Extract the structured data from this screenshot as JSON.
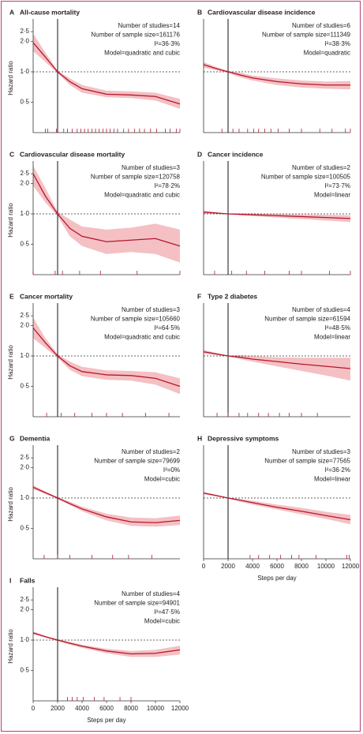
{
  "chart_data": [
    {
      "type": "line",
      "label": "A",
      "title": "All-cause mortality",
      "annotations": [
        "Number of studies=14",
        "Number of sample size=161176",
        "I²=36·3%",
        "Model=quadratic and cubic"
      ],
      "ylabel": "Hazard ratio",
      "log_y": true,
      "xlim": [
        0,
        12000
      ],
      "ylim": [
        0.25,
        3
      ],
      "yticks": [
        {
          "value": 0.5,
          "label": "0·5"
        },
        {
          "value": 1,
          "label": "1·0"
        },
        {
          "value": 2,
          "label": "2·0"
        },
        {
          "value": 2.5,
          "label": "2·5"
        }
      ],
      "reference_x": 2000,
      "reference_y": 1,
      "color": "#b5172e",
      "band_color": "#f4c0c3",
      "x": [
        0,
        1000,
        2000,
        3000,
        4000,
        6000,
        8000,
        10000,
        12000
      ],
      "values": [
        1.95,
        1.4,
        1.0,
        0.8,
        0.68,
        0.6,
        0.59,
        0.57,
        0.48
      ],
      "lower": [
        1.6,
        1.25,
        0.97,
        0.74,
        0.62,
        0.56,
        0.55,
        0.52,
        0.43
      ],
      "upper": [
        2.4,
        1.55,
        1.03,
        0.86,
        0.74,
        0.65,
        0.64,
        0.62,
        0.54
      ],
      "rug": [
        1000,
        1200,
        1900,
        2500,
        2800,
        3200,
        3600,
        3900,
        4200,
        4500,
        4800,
        5100,
        5400,
        5700,
        6000,
        6300,
        6600,
        6900,
        7400,
        7800,
        8300,
        8700,
        9100,
        9600,
        10100,
        10800,
        11200,
        11700,
        12000
      ]
    },
    {
      "type": "line",
      "label": "B",
      "title": "Cardiovascular disease incidence",
      "annotations": [
        "Number of studies=6",
        "Number of sample size=111349",
        "I²=38·3%",
        "Model=quadratic"
      ],
      "log_y": true,
      "xlim": [
        0,
        12000
      ],
      "ylim": [
        0.25,
        3
      ],
      "reference_x": 2000,
      "reference_y": 1,
      "color": "#b5172e",
      "band_color": "#f4c0c3",
      "x": [
        0,
        1000,
        2000,
        3000,
        4000,
        6000,
        8000,
        10000,
        12000
      ],
      "values": [
        1.18,
        1.08,
        1.0,
        0.93,
        0.87,
        0.8,
        0.76,
        0.74,
        0.74
      ],
      "lower": [
        1.1,
        1.04,
        0.98,
        0.88,
        0.82,
        0.74,
        0.7,
        0.68,
        0.67
      ],
      "upper": [
        1.25,
        1.12,
        1.02,
        0.98,
        0.92,
        0.86,
        0.82,
        0.8,
        0.81
      ],
      "rug": [
        1500,
        2400,
        2900,
        3600,
        4100,
        4500,
        5000,
        5500,
        6100,
        7000,
        8000,
        9500,
        10500,
        11600,
        12000
      ]
    },
    {
      "type": "line",
      "label": "C",
      "title": "Cardiovascular disease mortality",
      "annotations": [
        "Number of studies=3",
        "Number of sample size=120758",
        "I²=78·2%",
        "Model=quadratic and cubic"
      ],
      "ylabel": "Hazard ratio",
      "log_y": true,
      "xlim": [
        0,
        12000
      ],
      "ylim": [
        0.25,
        3
      ],
      "yticks": [
        {
          "value": 0.5,
          "label": "0·5"
        },
        {
          "value": 1,
          "label": "1·0"
        },
        {
          "value": 2,
          "label": "2·0"
        },
        {
          "value": 2.5,
          "label": "2·5"
        }
      ],
      "reference_x": 2000,
      "reference_y": 1,
      "color": "#b5172e",
      "band_color": "#f4c0c3",
      "x": [
        0,
        1000,
        2000,
        3000,
        4000,
        6000,
        8000,
        10000,
        12000
      ],
      "values": [
        2.5,
        1.5,
        1.0,
        0.72,
        0.6,
        0.53,
        0.55,
        0.57,
        0.48
      ],
      "lower": [
        1.9,
        1.3,
        0.95,
        0.6,
        0.48,
        0.4,
        0.42,
        0.4,
        0.33
      ],
      "upper": [
        3,
        1.8,
        1.05,
        0.88,
        0.75,
        0.7,
        0.73,
        0.8,
        0.7
      ],
      "rug": [
        0,
        1800,
        2400,
        3800,
        5500,
        8500,
        12000
      ]
    },
    {
      "type": "line",
      "label": "D",
      "title": "Cancer incidence",
      "annotations": [
        "Number of studies=2",
        "Number of sample size=100505",
        "I²=73·7%",
        "Model=linear"
      ],
      "log_y": true,
      "xlim": [
        0,
        12000
      ],
      "ylim": [
        0.25,
        3
      ],
      "reference_x": 2000,
      "reference_y": 1,
      "color": "#b5172e",
      "band_color": "#f4c0c3",
      "x": [
        0,
        1000,
        2000,
        3000,
        4000,
        6000,
        8000,
        10000,
        12000
      ],
      "values": [
        1.04,
        1.02,
        1.0,
        0.99,
        0.98,
        0.96,
        0.94,
        0.92,
        0.9
      ],
      "lower": [
        1.0,
        1.0,
        0.99,
        0.97,
        0.95,
        0.92,
        0.89,
        0.86,
        0.83
      ],
      "upper": [
        1.08,
        1.04,
        1.01,
        1.01,
        1.01,
        1.0,
        0.99,
        0.98,
        0.97
      ],
      "rug": [
        900,
        2300,
        3500,
        5000,
        7000,
        8000,
        10300,
        12000
      ]
    },
    {
      "type": "line",
      "label": "E",
      "title": "Cancer mortality",
      "annotations": [
        "Number of studies=3",
        "Number of sample size=105660",
        "I²=64·5%",
        "Model=quadratic and cubic"
      ],
      "ylabel": "Hazard ratio",
      "log_y": true,
      "xlim": [
        0,
        12000
      ],
      "ylim": [
        0.25,
        3
      ],
      "yticks": [
        {
          "value": 0.5,
          "label": "0·5"
        },
        {
          "value": 1,
          "label": "1·0"
        },
        {
          "value": 2,
          "label": "2·0"
        },
        {
          "value": 2.5,
          "label": "2·5"
        }
      ],
      "reference_x": 2000,
      "reference_y": 1,
      "color": "#b5172e",
      "band_color": "#f4c0c3",
      "x": [
        0,
        1000,
        2000,
        3000,
        4000,
        6000,
        8000,
        10000,
        12000
      ],
      "values": [
        1.9,
        1.35,
        1.0,
        0.8,
        0.7,
        0.65,
        0.64,
        0.6,
        0.5
      ],
      "lower": [
        1.5,
        1.2,
        0.96,
        0.73,
        0.63,
        0.58,
        0.57,
        0.52,
        0.42
      ],
      "upper": [
        2.4,
        1.5,
        1.04,
        0.88,
        0.78,
        0.72,
        0.71,
        0.69,
        0.6
      ],
      "rug": [
        1100,
        2300,
        3400,
        4800,
        6000,
        7300,
        9200,
        11100
      ]
    },
    {
      "type": "line",
      "label": "F",
      "title": "Type 2 diabetes",
      "annotations": [
        "Number of studies=4",
        "Number of sample size=61594",
        "I²=48·5%",
        "Model=linear"
      ],
      "log_y": true,
      "xlim": [
        0,
        12000
      ],
      "ylim": [
        0.25,
        3
      ],
      "reference_x": 2000,
      "reference_y": 1,
      "color": "#b5172e",
      "band_color": "#f4c0c3",
      "x": [
        0,
        1000,
        2000,
        3000,
        4000,
        6000,
        8000,
        10000,
        12000
      ],
      "values": [
        1.1,
        1.05,
        1.0,
        0.97,
        0.93,
        0.88,
        0.83,
        0.79,
        0.75
      ],
      "lower": [
        1.05,
        1.02,
        0.99,
        0.93,
        0.88,
        0.79,
        0.71,
        0.64,
        0.57
      ],
      "upper": [
        1.15,
        1.07,
        1.01,
        1.02,
        1.0,
        0.97,
        0.96,
        0.96,
        0.96
      ],
      "rug": [
        1100,
        2000,
        2900,
        3600,
        4500,
        5300,
        6200,
        7000,
        8000,
        9300
      ]
    },
    {
      "type": "line",
      "label": "G",
      "title": "Dementia",
      "annotations": [
        "Number of studies=2",
        "Number of sample size=79699",
        "I²=0%",
        "Model=cubic"
      ],
      "ylabel": "Hazard ratio",
      "log_y": true,
      "xlim": [
        0,
        12000
      ],
      "ylim": [
        0.25,
        3
      ],
      "yticks": [
        {
          "value": 0.5,
          "label": "0·5"
        },
        {
          "value": 1,
          "label": "1·0"
        },
        {
          "value": 2,
          "label": "2·0"
        },
        {
          "value": 2.5,
          "label": "2·5"
        }
      ],
      "reference_x": 2000,
      "reference_y": 1,
      "color": "#b5172e",
      "band_color": "#f4c0c3",
      "x": [
        0,
        1000,
        2000,
        3000,
        4000,
        6000,
        8000,
        10000,
        12000
      ],
      "values": [
        1.28,
        1.13,
        1.0,
        0.88,
        0.78,
        0.65,
        0.58,
        0.57,
        0.6
      ],
      "lower": [
        1.22,
        1.1,
        0.98,
        0.85,
        0.74,
        0.6,
        0.53,
        0.52,
        0.54
      ],
      "upper": [
        1.34,
        1.16,
        1.02,
        0.92,
        0.82,
        0.7,
        0.64,
        0.63,
        0.67
      ],
      "rug": [
        900,
        2000,
        3000,
        4800,
        6500,
        7800,
        9700
      ]
    },
    {
      "type": "line",
      "label": "H",
      "title": "Depressive symptoms",
      "annotations": [
        "Number of studies=3",
        "Number of sample size=77565",
        "I²=36·2%",
        "Model=linear"
      ],
      "xlabel": "Steps per day",
      "log_y": true,
      "xlim": [
        0,
        12000
      ],
      "xticks": [
        0,
        2000,
        4000,
        6000,
        8000,
        10000,
        12000
      ],
      "ylim": [
        0.25,
        3
      ],
      "reference_x": 2000,
      "reference_y": 1,
      "color": "#b5172e",
      "band_color": "#f4c0c3",
      "x": [
        0,
        1000,
        2000,
        3000,
        4000,
        6000,
        8000,
        10000,
        12000
      ],
      "values": [
        1.12,
        1.06,
        1.0,
        0.95,
        0.9,
        0.81,
        0.74,
        0.67,
        0.61
      ],
      "lower": [
        1.09,
        1.04,
        0.99,
        0.92,
        0.86,
        0.77,
        0.69,
        0.62,
        0.55
      ],
      "upper": [
        1.15,
        1.08,
        1.01,
        0.98,
        0.94,
        0.86,
        0.8,
        0.73,
        0.68
      ],
      "rug": [
        3800,
        4500,
        5400,
        6300,
        7200,
        7800,
        9200,
        11700,
        11900
      ]
    },
    {
      "type": "line",
      "label": "I",
      "title": "Falls",
      "annotations": [
        "Number of studies=4",
        "Number of sample size=94901",
        "I²=47·5%",
        "Model=cubic"
      ],
      "ylabel": "Hazard ratio",
      "xlabel": "Steps per day",
      "log_y": true,
      "xlim": [
        0,
        12000
      ],
      "xticks": [
        0,
        2000,
        4000,
        6000,
        8000,
        10000,
        12000
      ],
      "ylim": [
        0.25,
        3
      ],
      "yticks": [
        {
          "value": 0.5,
          "label": "0·5"
        },
        {
          "value": 1,
          "label": "1·0"
        },
        {
          "value": 2,
          "label": "2·0"
        },
        {
          "value": 2.5,
          "label": "2·5"
        }
      ],
      "reference_x": 2000,
      "reference_y": 1,
      "color": "#b5172e",
      "band_color": "#f4c0c3",
      "x": [
        0,
        1000,
        2000,
        3000,
        4000,
        6000,
        8000,
        10000,
        12000
      ],
      "values": [
        1.18,
        1.08,
        1.0,
        0.93,
        0.87,
        0.78,
        0.73,
        0.74,
        0.8
      ],
      "lower": [
        1.14,
        1.06,
        0.98,
        0.9,
        0.84,
        0.74,
        0.68,
        0.68,
        0.72
      ],
      "upper": [
        1.22,
        1.1,
        1.02,
        0.96,
        0.9,
        0.82,
        0.78,
        0.8,
        0.88
      ],
      "rug": [
        2800,
        3200,
        3600,
        4100,
        5000,
        5800,
        7100,
        8000
      ]
    }
  ]
}
